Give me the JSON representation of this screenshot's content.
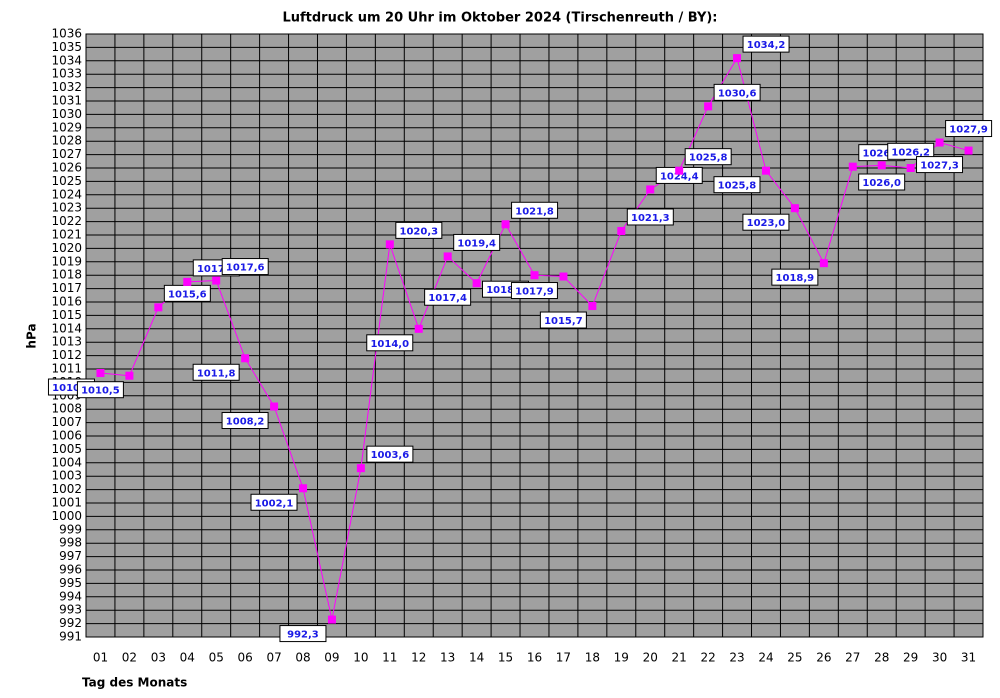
{
  "chart_data": {
    "type": "line",
    "title": "Luftdruck um 20 Uhr im Oktober 2024 (Tirschenreuth / BY):",
    "x_label": "Tag des Monats",
    "y_label": "hPa",
    "categories": [
      "01",
      "02",
      "03",
      "04",
      "05",
      "06",
      "07",
      "08",
      "09",
      "10",
      "11",
      "12",
      "13",
      "14",
      "15",
      "16",
      "17",
      "18",
      "19",
      "20",
      "21",
      "22",
      "23",
      "24",
      "25",
      "26",
      "27",
      "28",
      "29",
      "30",
      "31"
    ],
    "series": [
      {
        "name": "Luftdruck",
        "color": "#ff00ff",
        "values": [
          1010.7,
          1010.5,
          1015.6,
          1017.5,
          1017.6,
          1011.8,
          1008.2,
          1002.1,
          992.3,
          1003.6,
          1020.3,
          1014.0,
          1019.4,
          1017.4,
          1021.8,
          1018.0,
          1017.9,
          1015.7,
          1021.3,
          1024.4,
          1025.8,
          1030.6,
          1034.2,
          1025.8,
          1023.0,
          1018.9,
          1026.1,
          1026.2,
          1026.0,
          1027.9,
          1027.3
        ],
        "value_labels": [
          "1010,7",
          "1010,5",
          "1015,6",
          "1017,5",
          "1017,6",
          "1011,8",
          "1008,2",
          "1002,1",
          "992,3",
          "1003,6",
          "1020,3",
          "1014,0",
          "1019,4",
          "1017,4",
          "1021,8",
          "1018,0",
          "1017,9",
          "1015,7",
          "1021,3",
          "1024,4",
          "1025,8",
          "1030,6",
          "1034,2",
          "1025,8",
          "1023,0",
          "1018,9",
          "1026,1",
          "1026,2",
          "1026,0",
          "1027,9",
          "1027,3"
        ]
      }
    ],
    "ylim": [
      991,
      1036
    ],
    "yticks": [
      991,
      992,
      993,
      994,
      995,
      996,
      997,
      998,
      999,
      1000,
      1001,
      1002,
      1003,
      1004,
      1005,
      1006,
      1007,
      1008,
      1009,
      1010,
      1011,
      1012,
      1013,
      1014,
      1015,
      1016,
      1017,
      1018,
      1019,
      1020,
      1021,
      1022,
      1023,
      1024,
      1025,
      1026,
      1027,
      1028,
      1029,
      1030,
      1031,
      1032,
      1033,
      1034,
      1035,
      1036
    ],
    "grid": true,
    "background": "#a0a0a0"
  }
}
